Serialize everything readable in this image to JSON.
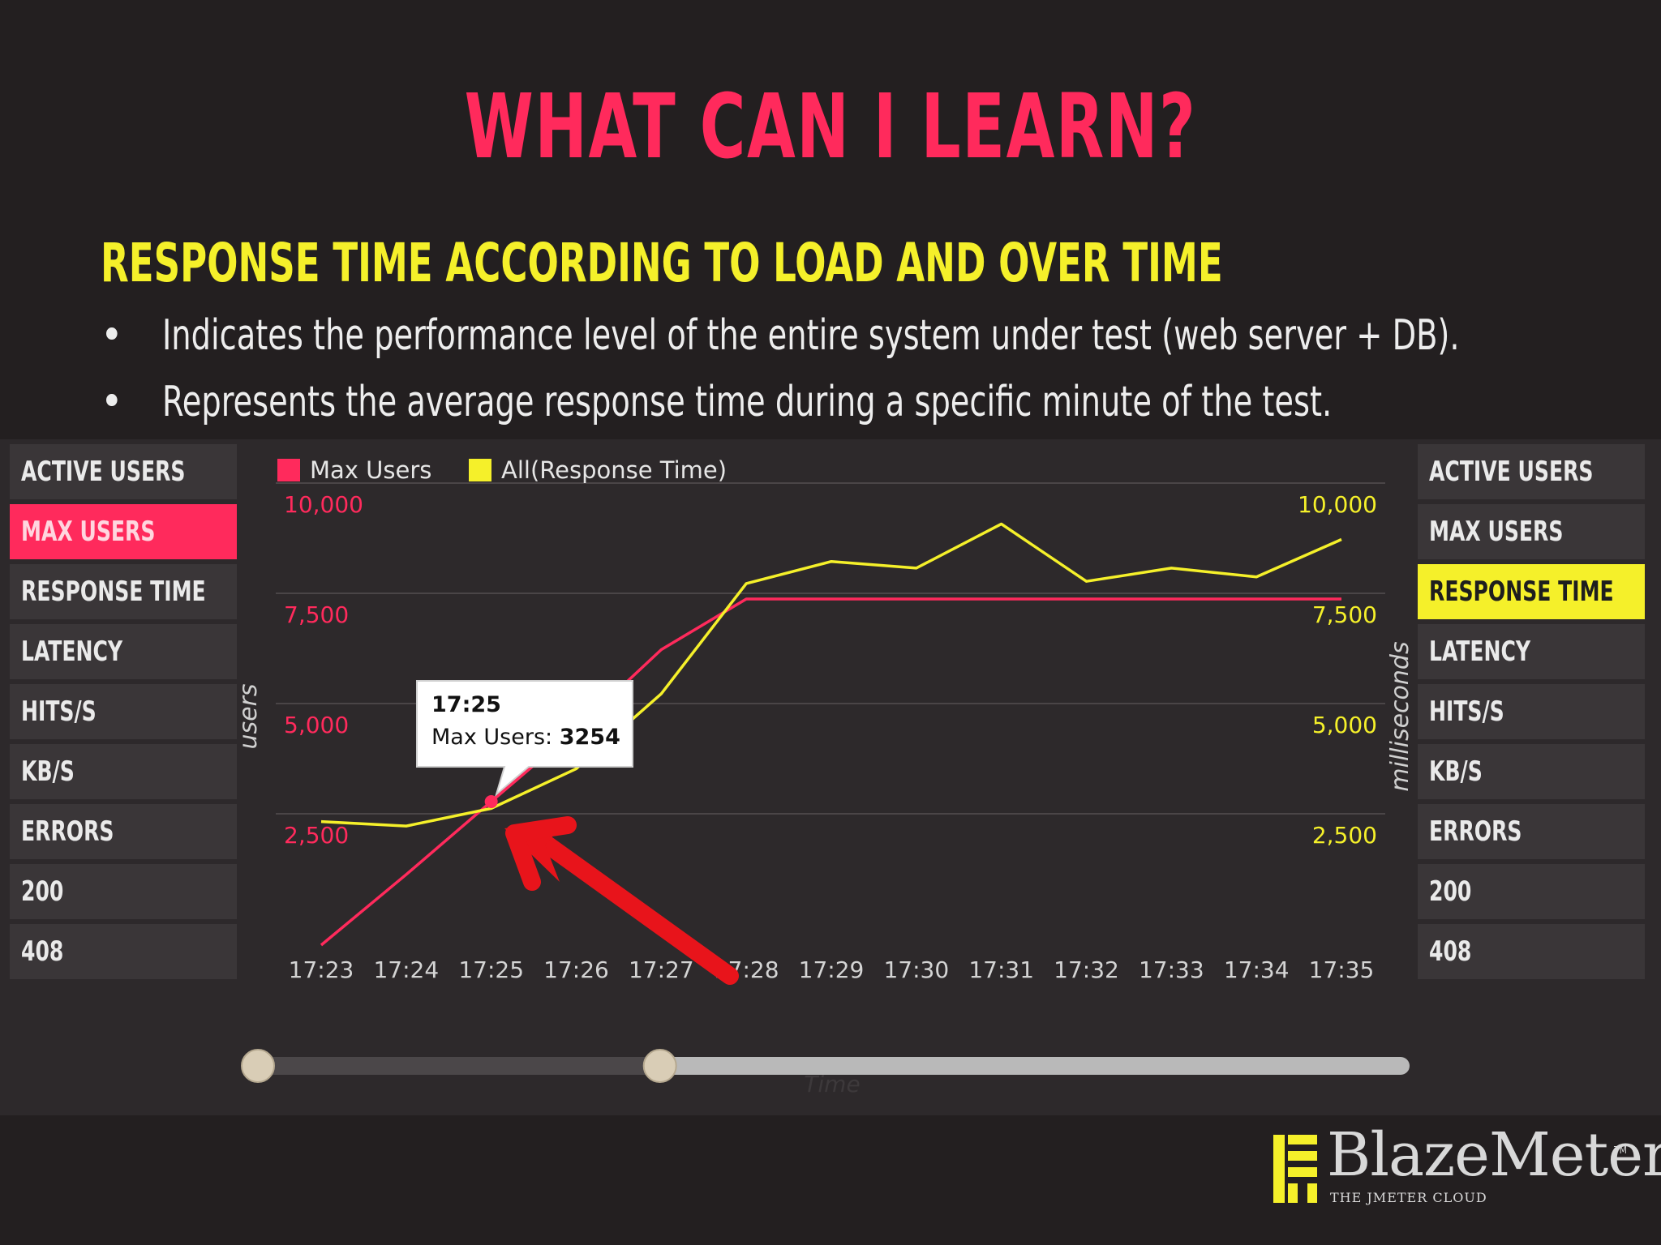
{
  "slide": {
    "title": "WHAT CAN I LEARN?",
    "subtitle": "RESPONSE TIME ACCORDING TO LOAD AND OVER TIME",
    "bullets": [
      "Indicates the performance level of the entire system under test (web server + DB).",
      "Represents the average response time during a specific minute of the test."
    ]
  },
  "left_panel": {
    "items": [
      "ACTIVE USERS",
      "MAX USERS",
      "RESPONSE TIME",
      "LATENCY",
      "HITS/S",
      "KB/S",
      "ERRORS",
      "200",
      "408"
    ],
    "active": "MAX USERS"
  },
  "right_panel": {
    "items": [
      "ACTIVE USERS",
      "MAX USERS",
      "RESPONSE TIME",
      "LATENCY",
      "HITS/S",
      "KB/S",
      "ERRORS",
      "200",
      "408"
    ],
    "active": "RESPONSE TIME"
  },
  "tooltip": {
    "time": "17:25",
    "label": "Max Users:",
    "value": "3254"
  },
  "slider": {
    "start_fraction": 0.0,
    "end_fraction": 0.35
  },
  "colors": {
    "pink": "#ff2a5c",
    "yellow": "#f5f02a",
    "background": "#231f20",
    "red_arrow": "#e8141b"
  },
  "logo": {
    "name": "BlazeMeter",
    "tm": "TM",
    "tagline": "THE JMETER CLOUD"
  },
  "chart_data": {
    "type": "line",
    "x": [
      "17:23",
      "17:24",
      "17:25",
      "17:26",
      "17:27",
      "17:28",
      "17:29",
      "17:30",
      "17:31",
      "17:32",
      "17:33",
      "17:34",
      "17:35"
    ],
    "xlabel": "Time",
    "ylabel_left": "users",
    "ylabel_right": "milliseconds",
    "ylim_left": [
      0,
      10000
    ],
    "ylim_right": [
      0,
      10000
    ],
    "yticks_left": [
      "2,500",
      "5,000",
      "7,500",
      "10,000"
    ],
    "yticks_right": [
      "2,500",
      "5,000",
      "7,500",
      "10,000"
    ],
    "legend_position": "top-left",
    "grid": true,
    "series": [
      {
        "name": "Max Users",
        "axis": "left",
        "color": "#ff2a5c",
        "values": [
          0,
          1600,
          3254,
          4900,
          6700,
          7850,
          7850,
          7850,
          7850,
          7850,
          7850,
          7850,
          7850
        ]
      },
      {
        "name": "All(Response Time)",
        "axis": "right",
        "color": "#f5f02a",
        "values": [
          2800,
          2700,
          3100,
          4000,
          5700,
          8200,
          8700,
          8550,
          9550,
          8250,
          8550,
          8350,
          9200
        ]
      }
    ]
  }
}
